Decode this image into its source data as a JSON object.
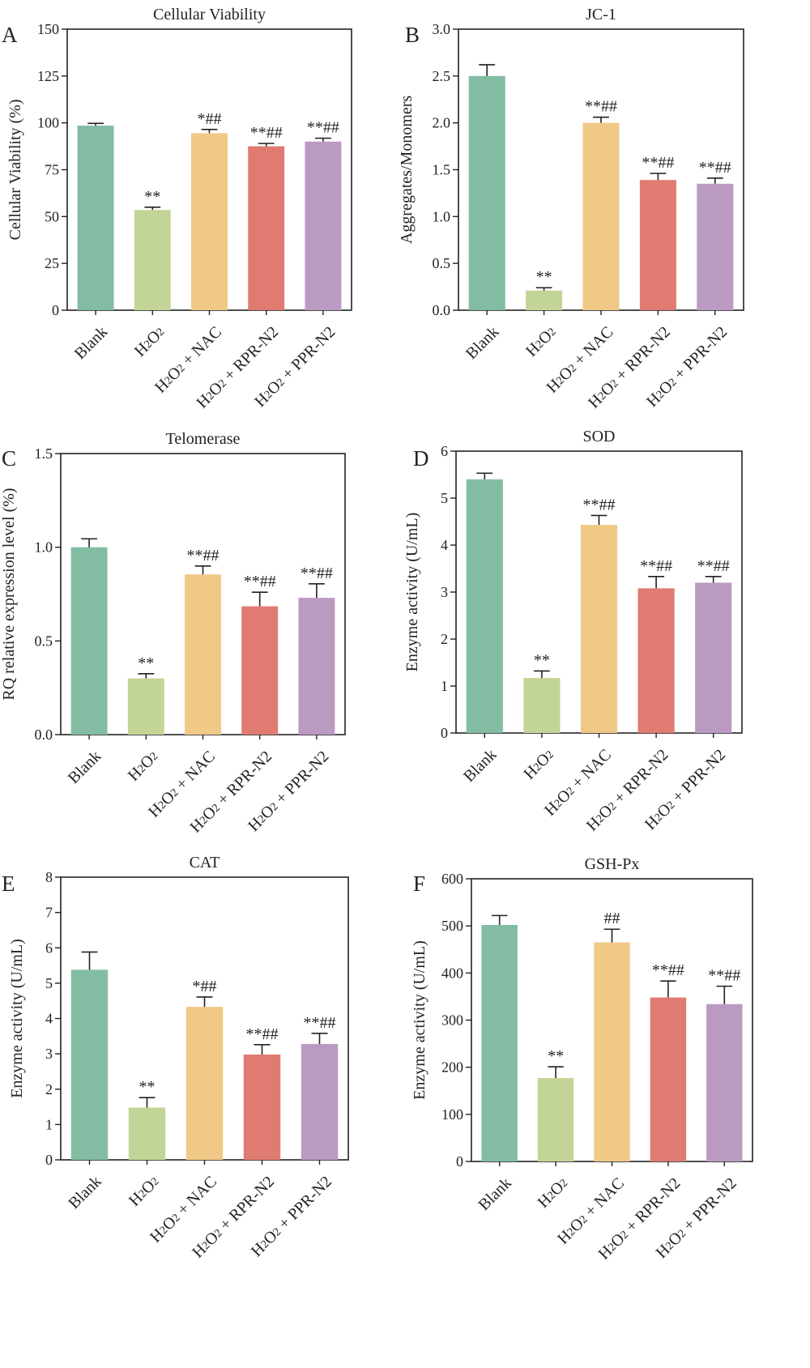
{
  "colors": {
    "bars": [
      "#82bca3",
      "#c3d596",
      "#f0c987",
      "#e07b72",
      "#bb9ac2"
    ],
    "axis": "#222222"
  },
  "categories_display": [
    {
      "main": "Blank",
      "sub": ""
    },
    {
      "main": "H",
      "sub": "2",
      "main2": "O",
      "sub2": "2",
      "rest": ""
    },
    {
      "main": "H",
      "sub": "2",
      "main2": "O",
      "sub2": "2",
      "rest": " + NAC"
    },
    {
      "main": "H",
      "sub": "2",
      "main2": "O",
      "sub2": "2",
      "rest": " + RPR-N2"
    },
    {
      "main": "H",
      "sub": "2",
      "main2": "O",
      "sub2": "2",
      "rest": " + PPR-N2"
    }
  ],
  "chart_data": [
    {
      "panel": "A",
      "type": "bar",
      "title": "Cellular Viability",
      "xlabel": "",
      "ylabel": "Cellular Viability (%)",
      "categories": [
        "Blank",
        "H2O2",
        "H2O2 + NAC",
        "H2O2 + RPR-N2",
        "H2O2 + PPR-N2"
      ],
      "values": [
        98.5,
        53.5,
        94.5,
        87.5,
        90.0
      ],
      "errors": [
        1.2,
        1.5,
        2.0,
        1.5,
        1.8
      ],
      "annotations": [
        "",
        "**",
        "*##",
        "**##",
        "**##"
      ],
      "ylim": [
        0,
        150
      ],
      "yticks": [
        "0",
        "25",
        "50",
        "75",
        "100",
        "125",
        "150"
      ]
    },
    {
      "panel": "B",
      "type": "bar",
      "title": "JC-1",
      "xlabel": "",
      "ylabel": "Aggregates/Monomers",
      "categories": [
        "Blank",
        "H2O2",
        "H2O2 + NAC",
        "H2O2 + RPR-N2",
        "H2O2 + PPR-N2"
      ],
      "values": [
        2.5,
        0.21,
        2.0,
        1.39,
        1.35
      ],
      "errors": [
        0.12,
        0.03,
        0.06,
        0.07,
        0.06
      ],
      "annotations": [
        "",
        "**",
        "**##",
        "**##",
        "**##"
      ],
      "ylim": [
        0,
        3.0
      ],
      "yticks": [
        "0.0",
        "0.5",
        "1.0",
        "1.5",
        "2.0",
        "2.5",
        "3.0"
      ]
    },
    {
      "panel": "C",
      "type": "bar",
      "title": "Telomerase",
      "xlabel": "",
      "ylabel": "RQ relative expression level (%)",
      "categories": [
        "Blank",
        "H2O2",
        "H2O2 + NAC",
        "H2O2 + RPR-N2",
        "H2O2 + PPR-N2"
      ],
      "values": [
        1.0,
        0.3,
        0.855,
        0.685,
        0.73
      ],
      "errors": [
        0.045,
        0.025,
        0.045,
        0.075,
        0.075
      ],
      "annotations": [
        "",
        "**",
        "**##",
        "**##",
        "**##"
      ],
      "ylim": [
        0,
        1.5
      ],
      "yticks": [
        "0.0",
        "0.5",
        "1.0",
        "1.5"
      ]
    },
    {
      "panel": "D",
      "type": "bar",
      "title": "SOD",
      "xlabel": "",
      "ylabel": "Enzyme activity (U/mL)",
      "categories": [
        "Blank",
        "H2O2",
        "H2O2 + NAC",
        "H2O2 + RPR-N2",
        "H2O2 + PPR-N2"
      ],
      "values": [
        5.4,
        1.17,
        4.43,
        3.08,
        3.2
      ],
      "errors": [
        0.13,
        0.15,
        0.2,
        0.25,
        0.13
      ],
      "annotations": [
        "",
        "**",
        "**##",
        "**##",
        "**##"
      ],
      "ylim": [
        0,
        6
      ],
      "yticks": [
        "0",
        "1",
        "2",
        "3",
        "4",
        "5",
        "6"
      ]
    },
    {
      "panel": "E",
      "type": "bar",
      "title": "CAT",
      "xlabel": "",
      "ylabel": "Enzyme activity (U/mL)",
      "categories": [
        "Blank",
        "H2O2",
        "H2O2 + NAC",
        "H2O2 + RPR-N2",
        "H2O2 + PPR-N2"
      ],
      "values": [
        5.38,
        1.48,
        4.33,
        2.98,
        3.28
      ],
      "errors": [
        0.5,
        0.28,
        0.28,
        0.28,
        0.3
      ],
      "annotations": [
        "",
        "**",
        "*##",
        "**##",
        "**##"
      ],
      "ylim": [
        0,
        8
      ],
      "yticks": [
        "0",
        "1",
        "2",
        "3",
        "4",
        "5",
        "6",
        "7",
        "8"
      ]
    },
    {
      "panel": "F",
      "type": "bar",
      "title": "GSH-Px",
      "xlabel": "",
      "ylabel": "Enzyme activity (U/mL)",
      "categories": [
        "Blank",
        "H2O2",
        "H2O2 + NAC",
        "H2O2 + RPR-N2",
        "H2O2 + PPR-N2"
      ],
      "values": [
        502,
        177,
        465,
        348,
        334
      ],
      "errors": [
        20,
        24,
        28,
        35,
        38
      ],
      "annotations": [
        "",
        "**",
        "##",
        "**##",
        "**##"
      ],
      "ylim": [
        0,
        600
      ],
      "yticks": [
        "0",
        "100",
        "200",
        "300",
        "400",
        "500",
        "600"
      ]
    }
  ]
}
